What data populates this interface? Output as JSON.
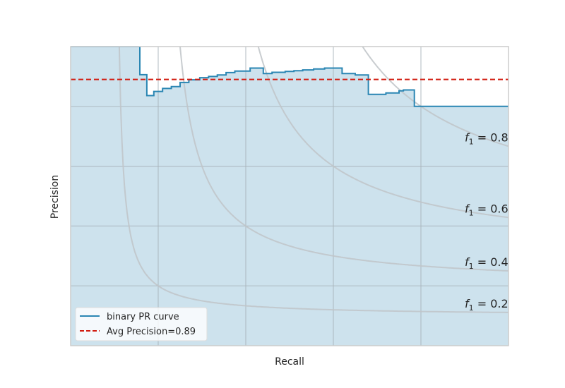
{
  "chart_data": {
    "type": "line",
    "title": "",
    "xlabel": "Recall",
    "ylabel": "Precision",
    "xlim": [
      0,
      1
    ],
    "ylim": [
      0,
      1
    ],
    "grid": true,
    "tick_labels_visible": false,
    "legend_placement": "lower-left",
    "colors": {
      "pr_curve": "#2a86b3",
      "fill": "#cde2ed",
      "avg_precision": "#d11b0f",
      "iso_f1": "#bfc4c8",
      "grid": "#a8b3ba",
      "frame": "#cccccc"
    },
    "series": [
      {
        "name": "binary PR curve",
        "style": "step",
        "x": [
          0,
          0.158,
          0.158,
          0.174,
          0.174,
          0.19,
          0.19,
          0.21,
          0.21,
          0.23,
          0.23,
          0.25,
          0.25,
          0.27,
          0.27,
          0.295,
          0.295,
          0.315,
          0.315,
          0.335,
          0.335,
          0.355,
          0.355,
          0.375,
          0.375,
          0.41,
          0.41,
          0.44,
          0.44,
          0.46,
          0.46,
          0.49,
          0.49,
          0.51,
          0.51,
          0.53,
          0.53,
          0.555,
          0.555,
          0.58,
          0.58,
          0.62,
          0.62,
          0.65,
          0.65,
          0.68,
          0.68,
          0.72,
          0.72,
          0.75,
          0.75,
          0.76,
          0.76,
          0.785,
          0.785,
          0.8,
          0.8,
          0.82,
          0.82,
          0.825,
          0.825,
          0.86,
          0.86,
          0.875,
          0.875,
          0.895,
          0.895,
          0.898,
          0.898,
          0.918,
          0.918,
          0.94,
          0.94,
          0.962,
          0.962,
          0.98,
          0.98,
          1.0
        ],
        "y": [
          1.0,
          1.0,
          0.906,
          0.906,
          0.836,
          0.836,
          0.85,
          0.85,
          0.86,
          0.86,
          0.866,
          0.866,
          0.88,
          0.88,
          0.889,
          0.889,
          0.896,
          0.896,
          0.9,
          0.9,
          0.905,
          0.905,
          0.913,
          0.913,
          0.918,
          0.918,
          0.928,
          0.928,
          0.91,
          0.91,
          0.914,
          0.914,
          0.917,
          0.917,
          0.919,
          0.919,
          0.922,
          0.922,
          0.925,
          0.925,
          0.928,
          0.928,
          0.91,
          0.91,
          0.905,
          0.905,
          0.84,
          0.84,
          0.845,
          0.845,
          0.852,
          0.852,
          0.855,
          0.855,
          0.8,
          0.8,
          0.8,
          0.8,
          0.8,
          0.8,
          0.8,
          0.8,
          0.8,
          0.8,
          0.8,
          0.8,
          0.8,
          0.8,
          0.8,
          0.8,
          0.8,
          0.8,
          0.8,
          0.8,
          0.8,
          0.8,
          0.8,
          0.8
        ],
        "note_unused": ""
      }
    ],
    "avg_precision": {
      "name": "Avg Precision=0.89",
      "value": 0.89
    },
    "iso_f1": [
      {
        "f": 0.2,
        "label_var": "f",
        "label_sub": "1",
        "label_rest": " = 0.2"
      },
      {
        "f": 0.4,
        "label_var": "f",
        "label_sub": "1",
        "label_rest": " = 0.4"
      },
      {
        "f": 0.6,
        "label_var": "f",
        "label_sub": "1",
        "label_rest": " = 0.6"
      },
      {
        "f": 0.8,
        "label_var": "f",
        "label_sub": "1",
        "label_rest": " = 0.8"
      }
    ]
  }
}
